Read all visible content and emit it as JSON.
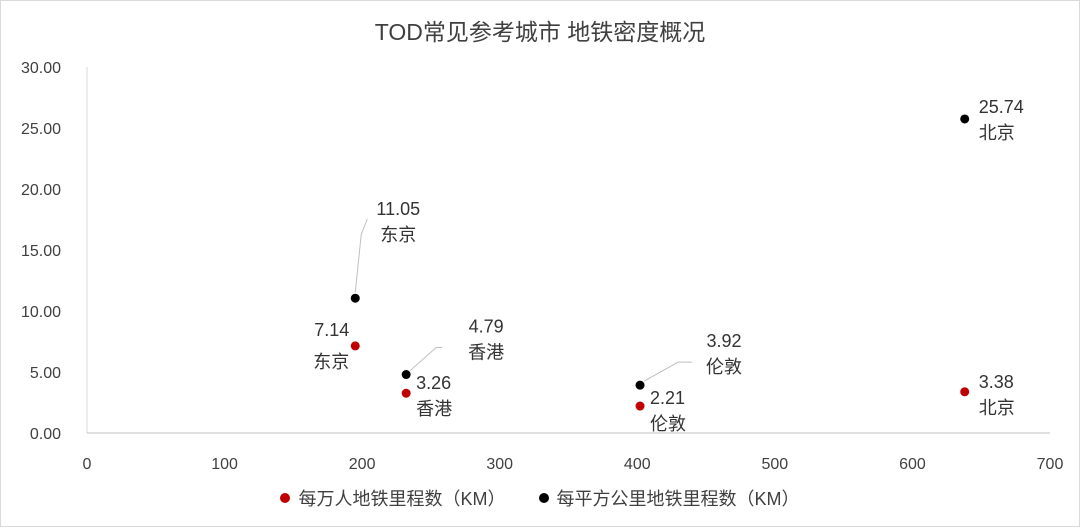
{
  "chart_data": {
    "type": "scatter",
    "title": "TOD常见参考城市 地铁密度概况",
    "xlim": [
      0,
      700
    ],
    "ylim": [
      0,
      30
    ],
    "x_ticks": [
      "0",
      "100",
      "200",
      "300",
      "400",
      "500",
      "600",
      "700"
    ],
    "y_ticks": [
      "0.00",
      "5.00",
      "10.00",
      "15.00",
      "20.00",
      "25.00",
      "30.00"
    ],
    "legend_position": "bottom",
    "series": [
      {
        "name": "每万人地铁里程数（KM）",
        "color": "#c00000",
        "points": [
          {
            "x": 195,
            "y": 7.14,
            "value": "7.14",
            "city": "东京"
          },
          {
            "x": 232,
            "y": 3.26,
            "value": "3.26",
            "city": "香港"
          },
          {
            "x": 402,
            "y": 2.21,
            "value": "2.21",
            "city": "伦敦"
          },
          {
            "x": 638,
            "y": 3.38,
            "value": "3.38",
            "city": "北京"
          }
        ]
      },
      {
        "name": "每平方公里地铁里程数（KM）",
        "color": "#000000",
        "points": [
          {
            "x": 195,
            "y": 11.05,
            "value": "11.05",
            "city": "东京"
          },
          {
            "x": 232,
            "y": 4.79,
            "value": "4.79",
            "city": "香港"
          },
          {
            "x": 402,
            "y": 3.92,
            "value": "3.92",
            "city": "伦敦"
          },
          {
            "x": 638,
            "y": 25.74,
            "value": "25.74",
            "city": "北京"
          }
        ]
      }
    ]
  }
}
